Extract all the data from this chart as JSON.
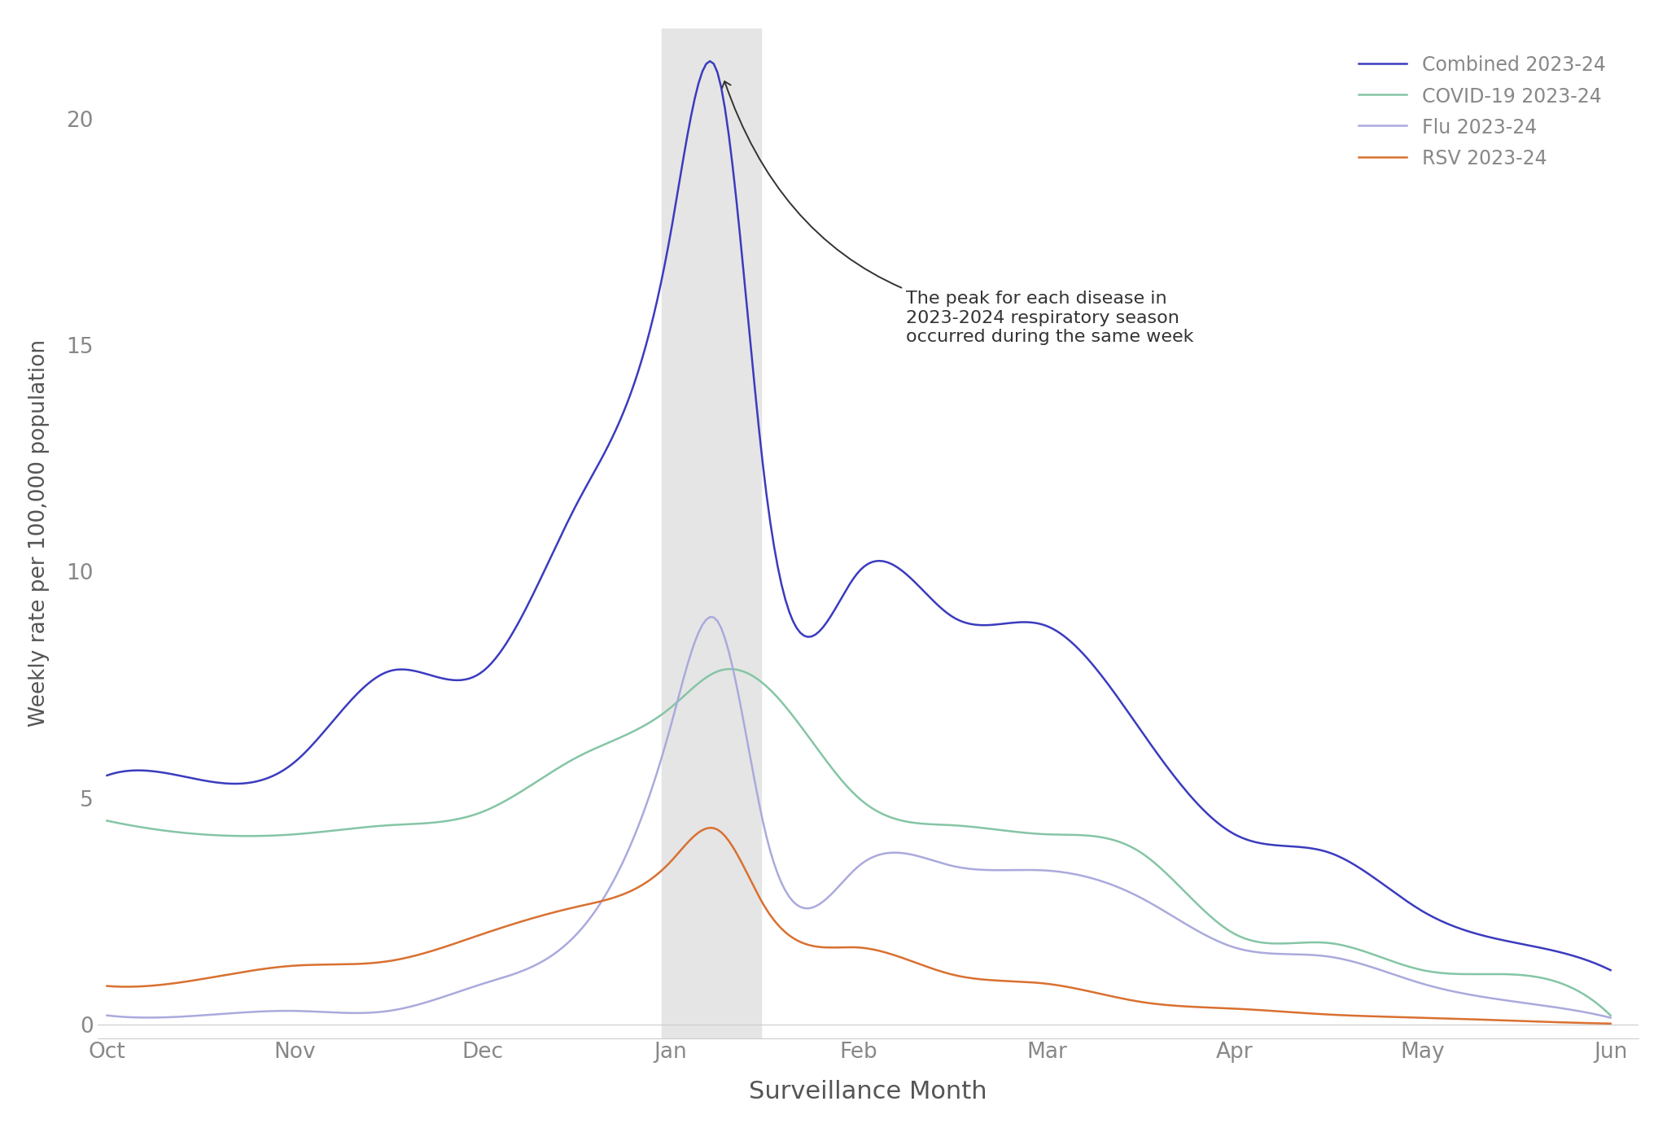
{
  "xlabel": "Surveillance Month",
  "ylabel": "Weekly rate per 100,000 population",
  "background_color": "#ffffff",
  "annotation_text": "The peak for each disease in\n2023-2024 respiratory season\noccurred during the same week",
  "ylim": [
    -0.3,
    22
  ],
  "yticks": [
    0,
    5,
    10,
    15,
    20
  ],
  "x_labels": [
    "Oct",
    "Nov",
    "Dec",
    "Jan",
    "Feb",
    "Mar",
    "Apr",
    "May",
    "Jun"
  ],
  "series": {
    "combined": {
      "label": "Combined 2023-24",
      "color": "#3b3bbf",
      "linewidth": 1.8,
      "x_pts": [
        0,
        0.5,
        1.0,
        1.5,
        2.0,
        2.5,
        3.0,
        3.25,
        3.5,
        4.0,
        4.5,
        5.0,
        5.5,
        6.0,
        6.5,
        7.0,
        7.5,
        8.0
      ],
      "y_pts": [
        5.5,
        5.4,
        5.8,
        7.8,
        7.8,
        11.5,
        17.5,
        21.0,
        12.0,
        10.0,
        9.0,
        8.8,
        6.5,
        4.2,
        3.8,
        2.5,
        1.8,
        1.2
      ]
    },
    "covid": {
      "label": "COVID-19 2023-24",
      "color": "#85c5a5",
      "linewidth": 1.8,
      "x_pts": [
        0,
        0.5,
        1.0,
        1.5,
        2.0,
        2.5,
        3.0,
        3.25,
        3.5,
        4.0,
        4.5,
        5.0,
        5.5,
        6.0,
        6.5,
        7.0,
        7.5,
        8.0
      ],
      "y_pts": [
        4.5,
        4.2,
        4.2,
        4.4,
        4.7,
        5.9,
        7.0,
        7.8,
        7.5,
        5.0,
        4.4,
        4.2,
        3.8,
        2.0,
        1.8,
        1.2,
        1.1,
        0.2
      ]
    },
    "flu": {
      "label": "Flu 2023-24",
      "color": "#aaaadd",
      "linewidth": 1.8,
      "x_pts": [
        0,
        0.5,
        1.0,
        1.5,
        2.0,
        2.5,
        3.0,
        3.25,
        3.5,
        4.0,
        4.5,
        5.0,
        5.5,
        6.0,
        6.5,
        7.0,
        7.5,
        8.0
      ],
      "y_pts": [
        0.2,
        0.2,
        0.3,
        0.3,
        0.9,
        2.0,
        6.6,
        8.9,
        4.3,
        3.5,
        3.5,
        3.4,
        2.8,
        1.7,
        1.5,
        0.9,
        0.5,
        0.15
      ]
    },
    "rsv": {
      "label": "RSV 2023-24",
      "color": "#d97030",
      "linewidth": 1.8,
      "x_pts": [
        0,
        0.5,
        1.0,
        1.5,
        2.0,
        2.5,
        3.0,
        3.25,
        3.5,
        4.0,
        4.5,
        5.0,
        5.5,
        6.0,
        6.5,
        7.0,
        7.5,
        8.0
      ],
      "y_pts": [
        0.85,
        1.0,
        1.3,
        1.4,
        2.0,
        2.6,
        3.6,
        4.3,
        2.6,
        1.7,
        1.1,
        0.9,
        0.5,
        0.35,
        0.22,
        0.15,
        0.08,
        0.02
      ]
    }
  }
}
